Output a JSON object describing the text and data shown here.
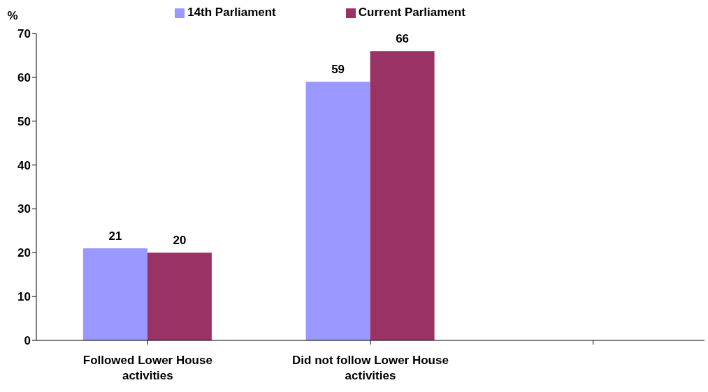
{
  "chart_data": {
    "type": "bar",
    "ylabel": "%",
    "categories": [
      "Followed Lower House activities",
      "Did not follow Lower House activities",
      null
    ],
    "series": [
      {
        "name": "14th Parliament",
        "color": "#9999ff",
        "values": [
          21,
          59,
          null
        ]
      },
      {
        "name": "Current Parliament",
        "color": "#993366",
        "values": [
          20,
          66,
          null
        ]
      }
    ],
    "ylim": [
      0,
      70
    ],
    "yticks": [
      0,
      10,
      20,
      30,
      40,
      50,
      60,
      70
    ],
    "grid": false,
    "legend": "top",
    "data_labels": true
  }
}
